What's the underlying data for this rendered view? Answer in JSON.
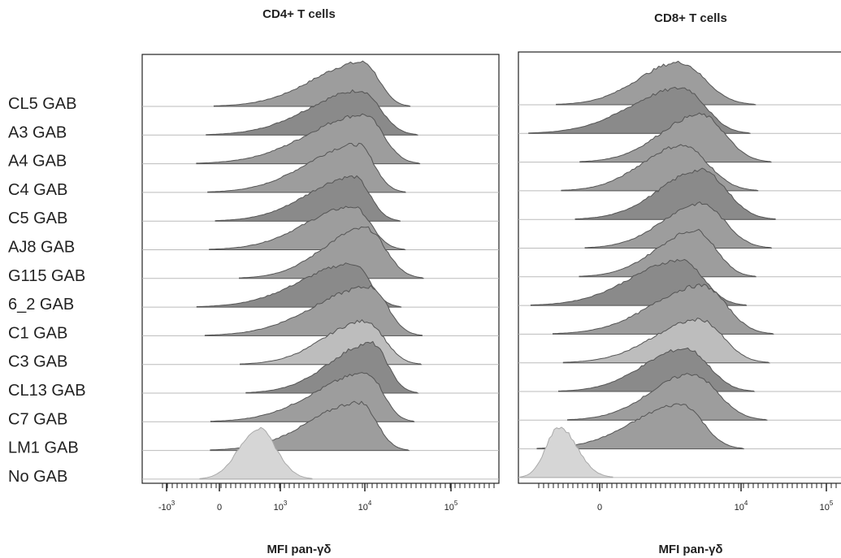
{
  "panels": [
    {
      "title": "CD4+ T cells",
      "x_label": "MFI pan-γδ",
      "tick_labels": [
        {
          "base": "-10",
          "exp": "3"
        },
        {
          "base": "0"
        },
        {
          "base": "10",
          "exp": "3"
        },
        {
          "base": "10",
          "exp": "4"
        },
        {
          "base": "10",
          "exp": "5"
        }
      ]
    },
    {
      "title": "CD8+ T cells",
      "x_label": "MFI pan-γδ",
      "tick_labels": [
        {
          "base": "0"
        },
        {
          "base": "10",
          "exp": "4"
        },
        {
          "base": "10",
          "exp": "5"
        }
      ]
    }
  ],
  "rows": [
    "CL5 GAB",
    "A3 GAB",
    "A4 GAB",
    "C4 GAB",
    "C5 GAB",
    "AJ8 GAB",
    "G115 GAB",
    "6_2 GAB",
    "C1 GAB",
    "C3 GAB",
    "CL13 GAB",
    "C7 GAB",
    "LM1 GAB",
    "No GAB"
  ]
}
